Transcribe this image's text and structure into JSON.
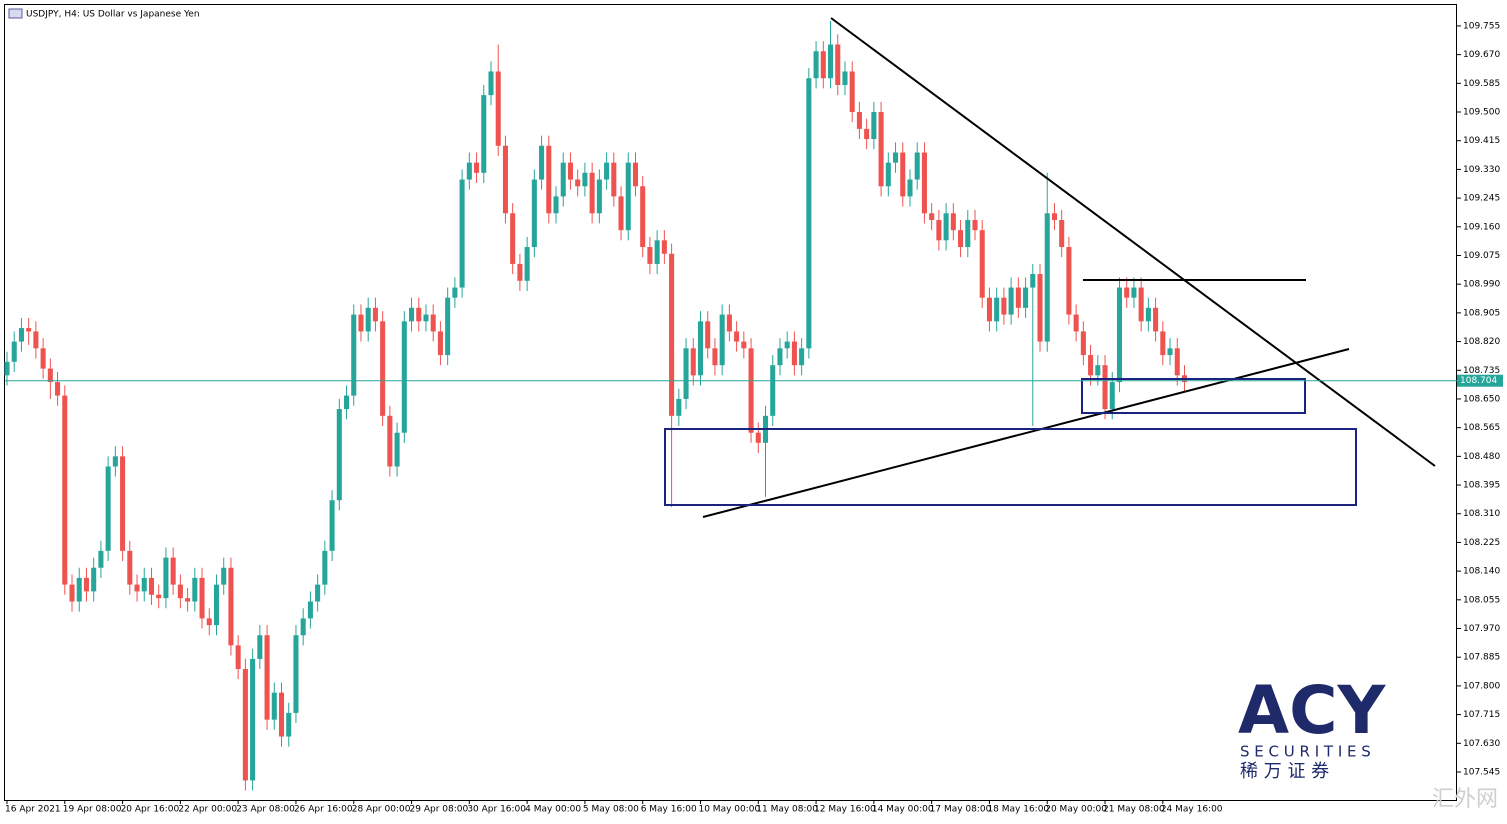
{
  "chart_data": {
    "type": "candlestick",
    "title": "USDJPY, H4:  US Dollar vs Japanese Yen",
    "watermark": {
      "brand": "ACY",
      "sub": "S E C U R I T I E S",
      "cn": "稀 万 证 券",
      "site": "汇外网"
    },
    "up_color": "#26a69a",
    "down_color": "#ef5350",
    "current_price_color": "#26a69a",
    "current_price": 108.704,
    "ylim": [
      107.462,
      109.817
    ],
    "yticks": [
      107.545,
      {
        "value": 107.63,
        "label": "107.630"
      },
      107.715,
      {
        "value": 107.8,
        "label": "107.800"
      },
      107.885,
      {
        "value": 107.97,
        "label": "107.970"
      },
      108.055,
      {
        "value": 108.14,
        "label": "108.140"
      },
      108.225,
      {
        "value": 108.31,
        "label": "108.310"
      },
      108.395,
      {
        "value": 108.48,
        "label": "108.480"
      },
      108.565,
      {
        "value": 108.65,
        "label": "108.650"
      },
      108.735,
      {
        "value": 108.82,
        "label": "108.820"
      },
      108.905,
      {
        "value": 108.99,
        "label": "108.990"
      },
      109.075,
      {
        "value": 109.16,
        "label": "109.160"
      },
      109.245,
      {
        "value": 109.33,
        "label": "109.330"
      },
      109.415,
      {
        "value": 109.5,
        "label": "109.500"
      },
      109.585,
      {
        "value": 109.67,
        "label": "109.670"
      },
      109.755
    ],
    "xlim": [
      0,
      201
    ],
    "xticks": [
      {
        "value": 0,
        "label": "16 Apr 2021"
      },
      {
        "value": 8,
        "label": "19 Apr 08:00"
      },
      {
        "value": 16,
        "label": "20 Apr 16:00"
      },
      {
        "value": 24,
        "label": "22 Apr 00:00"
      },
      {
        "value": 32,
        "label": "23 Apr 08:00"
      },
      {
        "value": 40,
        "label": "26 Apr 16:00"
      },
      {
        "value": 48,
        "label": "28 Apr 00:00"
      },
      {
        "value": 56,
        "label": "29 Apr 08:00"
      },
      {
        "value": 64,
        "label": "30 Apr 16:00"
      },
      {
        "value": 72,
        "label": "4 May 00:00"
      },
      {
        "value": 80,
        "label": "5 May 08:00"
      },
      {
        "value": 88,
        "label": "6 May 16:00"
      },
      {
        "value": 96,
        "label": "10 May 00:00"
      },
      {
        "value": 104,
        "label": "11 May 08:00"
      },
      {
        "value": 112,
        "label": "12 May 16:00"
      },
      {
        "value": 120,
        "label": "14 May 00:00"
      },
      {
        "value": 128,
        "label": "17 May 08:00"
      },
      {
        "value": 136,
        "label": "18 May 16:00"
      },
      {
        "value": 144,
        "label": "20 May 00:00"
      },
      {
        "value": 152,
        "label": "21 May 08:00"
      },
      {
        "value": 160,
        "label": "24 May 16:00"
      }
    ],
    "open": [
      108.72,
      108.76,
      108.82,
      108.86,
      108.85,
      108.8,
      108.74,
      108.7,
      108.66,
      108.1,
      108.05,
      108.12,
      108.08,
      108.15,
      108.2,
      108.45,
      108.48,
      108.2,
      108.1,
      108.08,
      108.12,
      108.07,
      108.06,
      108.18,
      108.1,
      108.06,
      108.05,
      108.12,
      108.0,
      107.98,
      108.1,
      108.15,
      107.92,
      107.85,
      107.52,
      107.88,
      107.95,
      107.7,
      107.78,
      107.65,
      107.72,
      107.95,
      108.0,
      108.05,
      108.1,
      108.2,
      108.35,
      108.62,
      108.66,
      108.9,
      108.85,
      108.92,
      108.88,
      108.6,
      108.45,
      108.55,
      108.88,
      108.92,
      108.88,
      108.9,
      108.85,
      108.78,
      108.95,
      108.98,
      109.3,
      109.35,
      109.32,
      109.55,
      109.62,
      109.4,
      109.2,
      109.05,
      109.0,
      109.1,
      109.3,
      109.4,
      109.2,
      109.25,
      109.35,
      109.3,
      109.28,
      109.32,
      109.2,
      109.3,
      109.35,
      109.25,
      109.15,
      109.35,
      109.28,
      109.1,
      109.05,
      109.12,
      109.08,
      108.6,
      108.65,
      108.8,
      108.72,
      108.88,
      108.8,
      108.75,
      108.9,
      108.85,
      108.82,
      108.8,
      108.55,
      108.52,
      108.6,
      108.75,
      108.8,
      108.82,
      108.75,
      108.8,
      109.6,
      109.68,
      109.6,
      109.7,
      109.58,
      109.62,
      109.5,
      109.45,
      109.42,
      109.5,
      109.28,
      109.35,
      109.38,
      109.25,
      109.3,
      109.38,
      109.2,
      109.18,
      109.12,
      109.2,
      109.15,
      109.1,
      109.18,
      109.15,
      108.95,
      108.88,
      108.95,
      108.9,
      108.98,
      108.92,
      108.98,
      109.02,
      108.82,
      109.2,
      109.18,
      109.1,
      108.9,
      108.85,
      108.78,
      108.72,
      108.75,
      108.62,
      108.7,
      108.98,
      108.95,
      108.98,
      108.88,
      108.92,
      108.85,
      108.78,
      108.8,
      108.72
    ],
    "high": [
      108.79,
      108.85,
      108.89,
      108.89,
      108.88,
      108.83,
      108.77,
      108.73,
      108.69,
      108.13,
      108.15,
      108.15,
      108.18,
      108.23,
      108.48,
      108.51,
      108.51,
      108.23,
      108.13,
      108.15,
      108.15,
      108.1,
      108.21,
      108.21,
      108.13,
      108.09,
      108.15,
      108.15,
      108.03,
      108.13,
      108.18,
      108.18,
      107.95,
      107.88,
      107.91,
      107.98,
      107.98,
      107.81,
      107.81,
      107.75,
      107.98,
      108.03,
      108.08,
      108.13,
      108.23,
      108.38,
      108.65,
      108.69,
      108.93,
      108.93,
      108.95,
      108.95,
      108.91,
      108.63,
      108.58,
      108.91,
      108.95,
      108.95,
      108.93,
      108.93,
      108.88,
      108.98,
      109.01,
      109.33,
      109.38,
      109.38,
      109.58,
      109.65,
      109.7,
      109.43,
      109.23,
      109.08,
      109.13,
      109.33,
      109.43,
      109.43,
      109.28,
      109.38,
      109.38,
      109.33,
      109.35,
      109.35,
      109.33,
      109.38,
      109.38,
      109.28,
      109.38,
      109.38,
      109.31,
      109.13,
      109.15,
      109.15,
      109.11,
      108.68,
      108.83,
      108.83,
      108.91,
      108.91,
      108.83,
      108.93,
      108.93,
      108.88,
      108.85,
      108.83,
      108.58,
      108.63,
      108.78,
      108.83,
      108.85,
      108.85,
      108.83,
      109.63,
      109.71,
      109.71,
      109.77,
      109.73,
      109.65,
      109.65,
      109.53,
      109.48,
      109.53,
      109.53,
      109.38,
      109.41,
      109.41,
      109.33,
      109.41,
      109.41,
      109.23,
      109.21,
      109.23,
      109.23,
      109.18,
      109.21,
      109.21,
      109.18,
      108.98,
      108.98,
      108.98,
      109.01,
      109.01,
      109.01,
      109.05,
      109.05,
      109.32,
      109.23,
      109.21,
      109.13,
      108.93,
      108.88,
      108.81,
      108.78,
      108.78,
      108.73,
      109.01,
      109.01,
      109.01,
      109.01,
      108.95,
      108.95,
      108.88,
      108.83,
      108.83,
      108.75
    ],
    "low": [
      108.69,
      108.73,
      108.79,
      108.81,
      108.77,
      108.71,
      108.65,
      108.63,
      108.07,
      108.02,
      108.02,
      108.05,
      108.05,
      108.12,
      108.17,
      108.42,
      108.17,
      108.07,
      108.05,
      108.05,
      108.04,
      108.03,
      108.03,
      108.07,
      108.03,
      108.02,
      108.02,
      107.97,
      107.95,
      107.95,
      108.07,
      107.89,
      107.82,
      107.49,
      107.49,
      107.85,
      107.67,
      107.67,
      107.62,
      107.62,
      107.69,
      107.92,
      107.97,
      108.02,
      108.07,
      108.17,
      108.32,
      108.59,
      108.63,
      108.82,
      108.82,
      108.85,
      108.57,
      108.42,
      108.42,
      108.52,
      108.85,
      108.85,
      108.85,
      108.82,
      108.75,
      108.75,
      108.92,
      108.95,
      109.27,
      109.29,
      109.29,
      109.52,
      109.37,
      109.17,
      109.02,
      108.97,
      108.97,
      109.07,
      109.27,
      109.17,
      109.17,
      109.22,
      109.27,
      109.25,
      109.25,
      109.17,
      109.17,
      109.27,
      109.22,
      109.12,
      109.12,
      109.25,
      109.07,
      109.02,
      109.02,
      109.05,
      108.33,
      108.57,
      108.62,
      108.69,
      108.69,
      108.77,
      108.72,
      108.72,
      108.82,
      108.79,
      108.77,
      108.52,
      108.49,
      108.36,
      108.57,
      108.72,
      108.77,
      108.72,
      108.72,
      108.77,
      109.57,
      109.57,
      109.57,
      109.55,
      109.55,
      109.47,
      109.42,
      109.39,
      109.39,
      109.25,
      109.25,
      109.32,
      109.22,
      109.22,
      109.27,
      109.17,
      109.15,
      109.09,
      109.09,
      109.12,
      109.07,
      109.07,
      109.12,
      108.92,
      108.85,
      108.85,
      108.87,
      108.87,
      108.89,
      108.89,
      108.57,
      108.79,
      108.79,
      109.15,
      109.07,
      108.87,
      108.82,
      108.75,
      108.69,
      108.69,
      108.59,
      108.59,
      108.67,
      108.92,
      108.92,
      108.85,
      108.85,
      108.82,
      108.75,
      108.75,
      108.69,
      108.67
    ],
    "close": [
      108.76,
      108.82,
      108.86,
      108.85,
      108.8,
      108.74,
      108.7,
      108.66,
      108.1,
      108.05,
      108.12,
      108.08,
      108.15,
      108.2,
      108.45,
      108.48,
      108.2,
      108.1,
      108.08,
      108.12,
      108.07,
      108.06,
      108.18,
      108.1,
      108.06,
      108.05,
      108.12,
      108.0,
      107.98,
      108.1,
      108.15,
      107.92,
      107.85,
      107.52,
      107.88,
      107.95,
      107.7,
      107.78,
      107.65,
      107.72,
      107.95,
      108.0,
      108.05,
      108.1,
      108.2,
      108.35,
      108.62,
      108.66,
      108.9,
      108.85,
      108.92,
      108.88,
      108.6,
      108.45,
      108.55,
      108.88,
      108.92,
      108.88,
      108.9,
      108.85,
      108.78,
      108.95,
      108.98,
      109.3,
      109.35,
      109.32,
      109.55,
      109.62,
      109.4,
      109.2,
      109.05,
      109.0,
      109.1,
      109.3,
      109.4,
      109.2,
      109.25,
      109.35,
      109.3,
      109.28,
      109.32,
      109.2,
      109.3,
      109.35,
      109.25,
      109.15,
      109.35,
      109.28,
      109.1,
      109.05,
      109.12,
      109.08,
      108.6,
      108.65,
      108.8,
      108.72,
      108.88,
      108.8,
      108.75,
      108.9,
      108.85,
      108.82,
      108.8,
      108.55,
      108.52,
      108.6,
      108.75,
      108.8,
      108.82,
      108.75,
      108.8,
      109.6,
      109.68,
      109.6,
      109.7,
      109.58,
      109.62,
      109.5,
      109.45,
      109.42,
      109.5,
      109.28,
      109.35,
      109.38,
      109.25,
      109.3,
      109.38,
      109.2,
      109.18,
      109.12,
      109.2,
      109.15,
      109.1,
      109.18,
      109.15,
      108.95,
      108.88,
      108.95,
      108.9,
      108.98,
      108.92,
      108.98,
      109.02,
      108.82,
      109.2,
      109.18,
      109.1,
      108.9,
      108.85,
      108.78,
      108.72,
      108.75,
      108.62,
      108.7,
      108.98,
      108.95,
      108.98,
      108.88,
      108.92,
      108.85,
      108.78,
      108.8,
      108.72,
      108.7
    ]
  }
}
